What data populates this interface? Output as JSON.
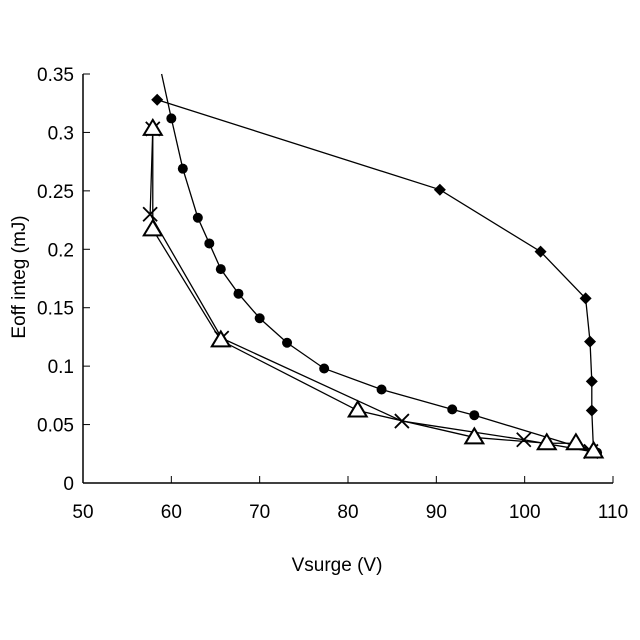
{
  "chart_data": {
    "type": "scatter",
    "title": "",
    "xlabel": "Vsurge (V)",
    "ylabel": "Eoff integ (mJ)",
    "xlim": [
      50,
      110
    ],
    "ylim": [
      0,
      0.35
    ],
    "xticks": [
      50,
      60,
      70,
      80,
      90,
      100,
      110
    ],
    "xtick_labels": [
      "50",
      "60",
      "70",
      "80",
      "90",
      "100",
      "110"
    ],
    "yticks": [
      0,
      0.05,
      0.1,
      0.15,
      0.2,
      0.25,
      0.3,
      0.35
    ],
    "ytick_labels": [
      "0",
      "0.05",
      "0.1",
      "0.15",
      "0.2",
      "0.25",
      "0.3",
      "0.35"
    ],
    "grid": false,
    "legend": "none",
    "series": [
      {
        "name": "diamond series",
        "marker": "diamond",
        "x": [
          58.4,
          90.4,
          101.8,
          106.9,
          107.4,
          107.6,
          107.6,
          107.8
        ],
        "y": [
          0.328,
          0.251,
          0.198,
          0.158,
          0.121,
          0.087,
          0.062,
          0.026
        ]
      },
      {
        "name": "circle series",
        "marker": "circle",
        "line_start": [
          58.9,
          0.35
        ],
        "x": [
          60.0,
          61.3,
          63.0,
          64.3,
          65.6,
          67.6,
          70.0,
          73.1,
          77.3,
          83.8,
          91.8,
          94.3,
          108.2
        ],
        "y": [
          0.312,
          0.269,
          0.227,
          0.205,
          0.183,
          0.162,
          0.141,
          0.12,
          0.098,
          0.08,
          0.063,
          0.058,
          0.026
        ]
      },
      {
        "name": "cross series",
        "marker": "cross",
        "x": [
          57.9,
          57.6,
          65.7,
          86.1,
          99.9,
          107.5
        ],
        "y": [
          0.303,
          0.23,
          0.124,
          0.053,
          0.037,
          0.027
        ]
      },
      {
        "name": "triangle series",
        "marker": "triangle",
        "x": [
          57.9,
          57.9,
          65.6,
          81.1,
          94.3,
          102.5,
          105.8,
          107.8
        ],
        "y": [
          0.303,
          0.217,
          0.122,
          0.062,
          0.039,
          0.034,
          0.034,
          0.027
        ]
      }
    ]
  }
}
